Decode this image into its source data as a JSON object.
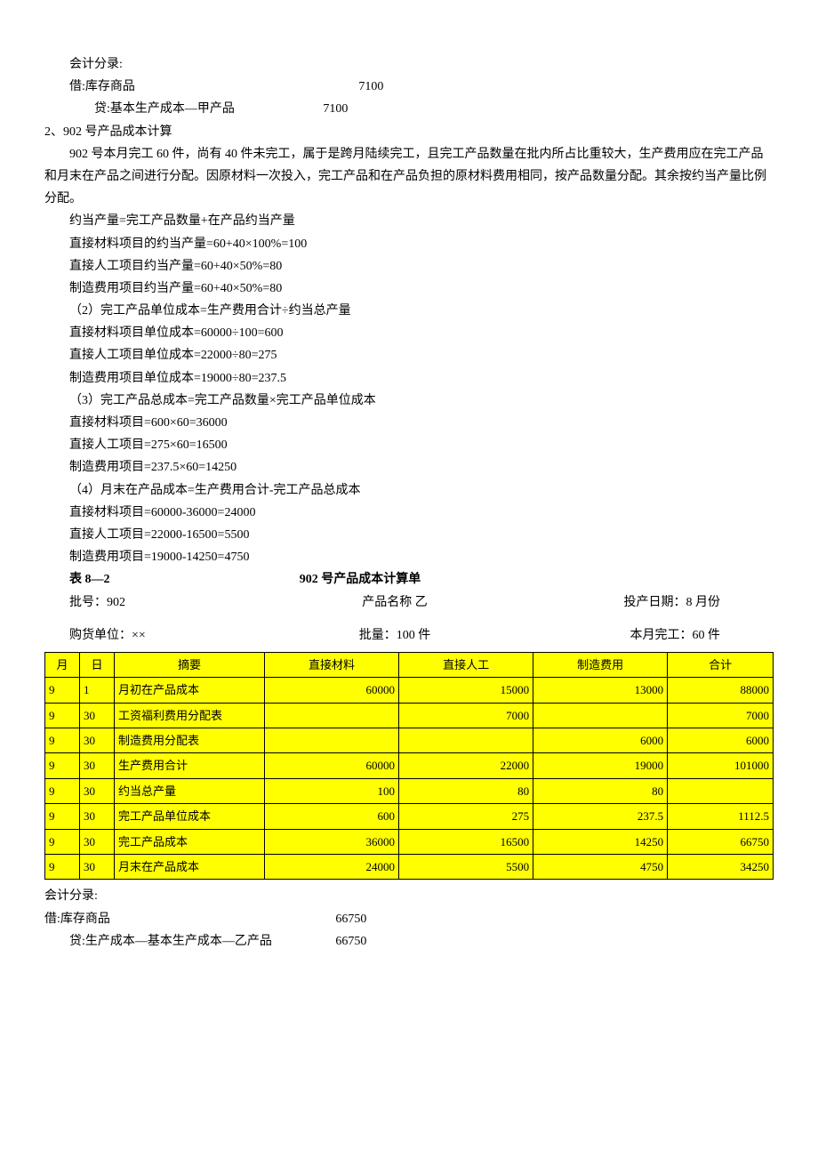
{
  "top_entry": {
    "heading": "会计分录:",
    "debit_label": "借:库存商品",
    "debit_amount": "7100",
    "credit_label": "贷:基本生产成本—甲产品",
    "credit_amount": "7100"
  },
  "section2": {
    "title": "2、902 号产品成本计算",
    "para1": "902 号本月完工 60 件，尚有 40 件未完工，属于是跨月陆续完工，且完工产品数量在批内所占比重较大，生产费用应在完工产品和月末在产品之间进行分配。因原材料一次投入，完工产品和在产品负担的原材料费用相同，按产品数量分配。其余按约当产量比例分配。",
    "lines": [
      "约当产量=完工产品数量+在产品约当产量",
      "直接材料项目的约当产量=60+40×100%=100",
      "直接人工项目约当产量=60+40×50%=80",
      "制造费用项目约当产量=60+40×50%=80",
      "（2）完工产品单位成本=生产费用合计÷约当总产量",
      "直接材料项目单位成本=60000÷100=600",
      "直接人工项目单位成本=22000÷80=275",
      "制造费用项目单位成本=19000÷80=237.5",
      "（3）完工产品总成本=完工产品数量×完工产品单位成本",
      "直接材料项目=600×60=36000",
      "直接人工项目=275×60=16500",
      "制造费用项目=237.5×60=14250",
      "（4）月末在产品成本=生产费用合计-完工产品总成本",
      "直接材料项目=60000-36000=24000",
      "直接人工项目=22000-16500=5500",
      "制造费用项目=19000-14250=4750"
    ]
  },
  "table_header": {
    "label": "表 8—2",
    "title": "902 号产品成本计算单",
    "row1": {
      "a": "批号：902",
      "b": "产品名称  乙",
      "c": "投产日期：8 月份"
    },
    "row2": {
      "a": "购货单位：××",
      "b": "批量：100 件",
      "c": "本月完工：60 件"
    }
  },
  "table": {
    "highlight_color": "#ffff00",
    "columns": [
      "月",
      "日",
      "摘要",
      "直接材料",
      "直接人工",
      "制造费用",
      "合计"
    ],
    "rows": [
      {
        "m": "9",
        "d": "1",
        "desc": "月初在产品成本",
        "c1": "60000",
        "c2": "15000",
        "c3": "13000",
        "c4": "88000"
      },
      {
        "m": "9",
        "d": "30",
        "desc": "工资福利费用分配表",
        "c1": "",
        "c2": "7000",
        "c3": "",
        "c4": "7000"
      },
      {
        "m": "9",
        "d": "30",
        "desc": "制造费用分配表",
        "c1": "",
        "c2": "",
        "c3": "6000",
        "c4": "6000"
      },
      {
        "m": "9",
        "d": "30",
        "desc": "生产费用合计",
        "c1": "60000",
        "c2": "22000",
        "c3": "19000",
        "c4": "101000"
      },
      {
        "m": "9",
        "d": "30",
        "desc": "约当总产量",
        "c1": "100",
        "c2": "80",
        "c3": "80",
        "c4": ""
      },
      {
        "m": "9",
        "d": "30",
        "desc": "完工产品单位成本",
        "c1": "600",
        "c2": "275",
        "c3": "237.5",
        "c4": "1112.5"
      },
      {
        "m": "9",
        "d": "30",
        "desc": "完工产品成本",
        "c1": "36000",
        "c2": "16500",
        "c3": "14250",
        "c4": "66750"
      },
      {
        "m": "9",
        "d": "30",
        "desc": "月末在产品成本",
        "c1": "24000",
        "c2": "5500",
        "c3": "4750",
        "c4": "34250"
      }
    ]
  },
  "bottom_entry": {
    "heading": "会计分录:",
    "debit_label": "借:库存商品",
    "debit_amount": "66750",
    "credit_label": "贷:生产成本—基本生产成本—乙产品",
    "credit_amount": "66750"
  }
}
